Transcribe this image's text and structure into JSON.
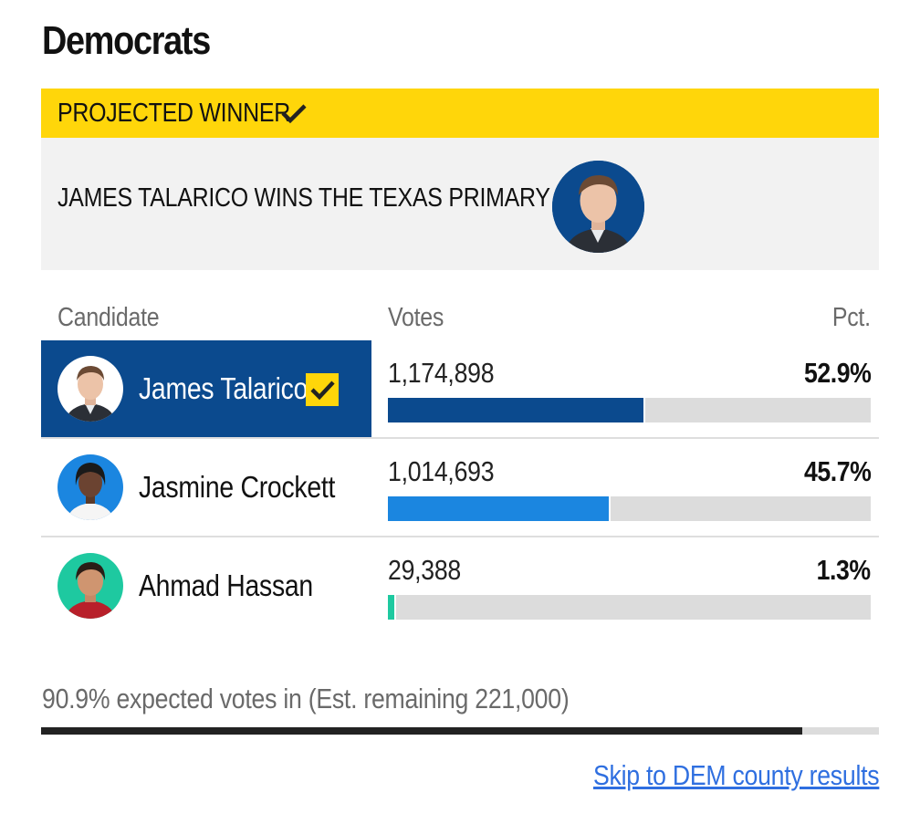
{
  "page_title": "Democrats",
  "banner": {
    "label": "PROJECTED WINNER",
    "icon": "check-icon",
    "color": "#ffd60a"
  },
  "winner_announcement": {
    "text": "JAMES TALARICO WINS THE TEXAS PRIMARY"
  },
  "table": {
    "headers": {
      "candidate": "Candidate",
      "votes": "Votes",
      "pct": "Pct."
    },
    "rows": [
      {
        "name": "James Talarico",
        "votes": "1,174,898",
        "pct": "52.9%",
        "share": 52.9,
        "winner": true,
        "bar_color": "#0b4a8e",
        "avatar_bg": "#ffffff"
      },
      {
        "name": "Jasmine Crockett",
        "votes": "1,014,693",
        "pct": "45.7%",
        "share": 45.7,
        "winner": false,
        "bar_color": "#1b86e0",
        "avatar_bg": "#1b86e0"
      },
      {
        "name": "Ahmad Hassan",
        "votes": "29,388",
        "pct": "1.3%",
        "share": 1.3,
        "winner": false,
        "bar_color": "#1ec9a0",
        "avatar_bg": "#1ec9a0"
      }
    ]
  },
  "reporting": {
    "text": "90.9% expected votes in (Est. remaining 221,000)",
    "percent_in": 90.9
  },
  "links": {
    "skip": "Skip to DEM county results"
  },
  "colors": {
    "winner_highlight": "#0b4a8e",
    "accent_yellow": "#ffd60a",
    "link": "#2f6fe0"
  }
}
